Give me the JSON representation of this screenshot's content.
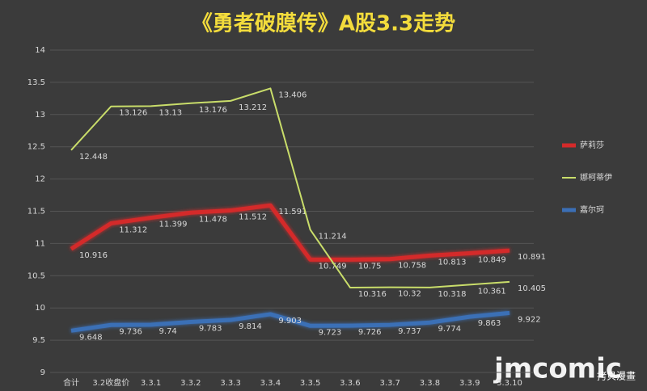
{
  "chart_data": {
    "type": "line",
    "title": "《勇者破膜传》A股3.3走势",
    "categories": [
      "合计",
      "3.2收盘价",
      "3.3.1",
      "3.3.2",
      "3.3.3",
      "3.3.4",
      "3.3.5",
      "3.3.6",
      "3.3.7",
      "3.3.8",
      "3.3.9",
      "3.3.10"
    ],
    "series": [
      {
        "name": "萨莉莎",
        "color": "#d42a2a",
        "values": [
          10.916,
          11.312,
          11.399,
          11.478,
          11.512,
          11.591,
          10.749,
          10.75,
          10.758,
          10.813,
          10.849,
          10.891
        ]
      },
      {
        "name": "娜柯蒂伊",
        "color": "#c9dd6a",
        "values": [
          12.448,
          13.126,
          13.13,
          13.176,
          13.212,
          13.406,
          11.214,
          10.316,
          10.32,
          10.318,
          10.361,
          10.405
        ]
      },
      {
        "name": "嘉尔珂",
        "color": "#3b6fb6",
        "values": [
          9.648,
          9.736,
          9.74,
          9.783,
          9.814,
          9.903,
          9.723,
          9.726,
          9.737,
          9.774,
          9.863,
          9.922
        ]
      }
    ],
    "ylim": [
      9,
      14
    ],
    "yticks": [
      9,
      9.5,
      10,
      10.5,
      11,
      11.5,
      12,
      12.5,
      13,
      13.5,
      14
    ],
    "grid": true,
    "legend": "right",
    "watermark": "jmcomic",
    "watermark_sub": "拷貝漫畫"
  }
}
